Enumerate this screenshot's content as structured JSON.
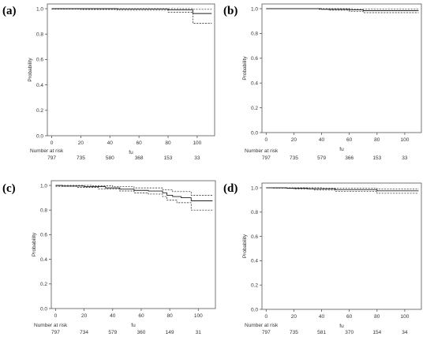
{
  "chart_data": [
    {
      "type": "line",
      "panel_label": "(a)",
      "ylabel": "Probability",
      "xlabel": "fu",
      "xlim": [
        -3,
        112
      ],
      "ylim": [
        0.0,
        1.0
      ],
      "xticks": [
        "0",
        "20",
        "40",
        "60",
        "80",
        "100"
      ],
      "yticks": [
        "0.0",
        "0.2",
        "0.4",
        "0.6",
        "0.8",
        "1.0"
      ],
      "risk_table": {
        "label": "Number at risk",
        "x": [
          0,
          20,
          40,
          60,
          80,
          100
        ],
        "counts": [
          "797",
          "735",
          "580",
          "368",
          "153",
          "33"
        ]
      },
      "series": [
        {
          "style": "solid",
          "points": [
            [
              0,
              1.0
            ],
            [
              45,
              1.0
            ],
            [
              45,
              0.997
            ],
            [
              80,
              0.997
            ],
            [
              80,
              0.99
            ],
            [
              97,
              0.99
            ],
            [
              97,
              0.962
            ],
            [
              110,
              0.962
            ]
          ]
        },
        {
          "style": "dashed",
          "points": [
            [
              0,
              1.0
            ],
            [
              97,
              1.0
            ],
            [
              97,
              0.995
            ],
            [
              110,
              0.995
            ]
          ]
        },
        {
          "style": "dashed",
          "points": [
            [
              0,
              0.997
            ],
            [
              20,
              0.997
            ],
            [
              20,
              0.994
            ],
            [
              45,
              0.994
            ],
            [
              45,
              0.988
            ],
            [
              80,
              0.988
            ],
            [
              80,
              0.972
            ],
            [
              97,
              0.972
            ],
            [
              97,
              0.885
            ],
            [
              110,
              0.885
            ]
          ]
        }
      ]
    },
    {
      "type": "line",
      "panel_label": "(b)",
      "ylabel": "Probability",
      "xlabel": "fu",
      "xlim": [
        -3,
        112
      ],
      "ylim": [
        0.0,
        1.0
      ],
      "xticks": [
        "0",
        "20",
        "40",
        "60",
        "80",
        "100"
      ],
      "yticks": [
        "0.0",
        "0.2",
        "0.4",
        "0.6",
        "0.8",
        "1.0"
      ],
      "risk_table": {
        "label": "Number at risk",
        "x": [
          0,
          20,
          40,
          60,
          80,
          100
        ],
        "counts": [
          "797",
          "735",
          "579",
          "366",
          "153",
          "33"
        ]
      },
      "series": [
        {
          "style": "solid",
          "points": [
            [
              0,
              1.0
            ],
            [
              40,
              1.0
            ],
            [
              40,
              0.995
            ],
            [
              60,
              0.995
            ],
            [
              60,
              0.99
            ],
            [
              70,
              0.99
            ],
            [
              70,
              0.984
            ],
            [
              110,
              0.984
            ]
          ]
        },
        {
          "style": "dashed",
          "points": [
            [
              0,
              1.0
            ],
            [
              62,
              1.0
            ],
            [
              62,
              0.998
            ],
            [
              110,
              0.998
            ]
          ]
        },
        {
          "style": "dashed",
          "points": [
            [
              38,
              0.995
            ],
            [
              45,
              0.995
            ],
            [
              45,
              0.988
            ],
            [
              60,
              0.988
            ],
            [
              60,
              0.978
            ],
            [
              70,
              0.978
            ],
            [
              70,
              0.968
            ],
            [
              110,
              0.968
            ]
          ]
        }
      ]
    },
    {
      "type": "line",
      "panel_label": "(c)",
      "ylabel": "Probability",
      "xlabel": "fu",
      "xlim": [
        -3,
        112
      ],
      "ylim": [
        0.0,
        1.0
      ],
      "xticks": [
        "0",
        "20",
        "40",
        "60",
        "80",
        "100"
      ],
      "yticks": [
        "0.0",
        "0.2",
        "0.4",
        "0.6",
        "0.8",
        "1.0"
      ],
      "risk_table": {
        "label": "Number at risk",
        "x": [
          0,
          20,
          40,
          60,
          80,
          100
        ],
        "counts": [
          "797",
          "734",
          "579",
          "360",
          "149",
          "31"
        ]
      },
      "series": [
        {
          "style": "solid",
          "points": [
            [
              0,
              1.0
            ],
            [
              5,
              1.0
            ],
            [
              5,
              0.995
            ],
            [
              20,
              0.995
            ],
            [
              20,
              0.99
            ],
            [
              35,
              0.99
            ],
            [
              35,
              0.98
            ],
            [
              45,
              0.98
            ],
            [
              45,
              0.97
            ],
            [
              55,
              0.97
            ],
            [
              55,
              0.96
            ],
            [
              65,
              0.96
            ],
            [
              65,
              0.955
            ],
            [
              75,
              0.955
            ],
            [
              75,
              0.94
            ],
            [
              78,
              0.94
            ],
            [
              78,
              0.92
            ],
            [
              82,
              0.92
            ],
            [
              82,
              0.91
            ],
            [
              88,
              0.91
            ],
            [
              88,
              0.9
            ],
            [
              95,
              0.9
            ],
            [
              95,
              0.875
            ],
            [
              110,
              0.875
            ]
          ]
        },
        {
          "style": "dashed",
          "points": [
            [
              0,
              1.0
            ],
            [
              25,
              1.0
            ],
            [
              25,
              0.997
            ],
            [
              40,
              0.997
            ],
            [
              40,
              0.99
            ],
            [
              55,
              0.99
            ],
            [
              55,
              0.98
            ],
            [
              75,
              0.98
            ],
            [
              75,
              0.965
            ],
            [
              82,
              0.965
            ],
            [
              82,
              0.95
            ],
            [
              95,
              0.95
            ],
            [
              95,
              0.92
            ],
            [
              110,
              0.92
            ]
          ]
        },
        {
          "style": "dashed",
          "points": [
            [
              0,
              0.993
            ],
            [
              15,
              0.993
            ],
            [
              15,
              0.985
            ],
            [
              30,
              0.985
            ],
            [
              30,
              0.97
            ],
            [
              45,
              0.97
            ],
            [
              45,
              0.955
            ],
            [
              55,
              0.955
            ],
            [
              55,
              0.94
            ],
            [
              65,
              0.94
            ],
            [
              65,
              0.93
            ],
            [
              75,
              0.93
            ],
            [
              75,
              0.91
            ],
            [
              78,
              0.91
            ],
            [
              78,
              0.88
            ],
            [
              85,
              0.88
            ],
            [
              85,
              0.86
            ],
            [
              95,
              0.86
            ],
            [
              95,
              0.8
            ],
            [
              110,
              0.8
            ]
          ]
        }
      ]
    },
    {
      "type": "line",
      "panel_label": "(d)",
      "ylabel": "Probability",
      "xlabel": "fu",
      "xlim": [
        -3,
        112
      ],
      "ylim": [
        0.0,
        1.0
      ],
      "xticks": [
        "0",
        "20",
        "40",
        "60",
        "80",
        "100"
      ],
      "yticks": [
        "0.0",
        "0.2",
        "0.4",
        "0.6",
        "0.8",
        "1.0"
      ],
      "risk_table": {
        "label": "Number at risk",
        "x": [
          0,
          20,
          40,
          60,
          80,
          100
        ],
        "counts": [
          "797",
          "735",
          "581",
          "370",
          "154",
          "34"
        ]
      },
      "series": [
        {
          "style": "solid",
          "points": [
            [
              0,
              1.0
            ],
            [
              15,
              1.0
            ],
            [
              15,
              0.996
            ],
            [
              30,
              0.996
            ],
            [
              30,
              0.992
            ],
            [
              50,
              0.992
            ],
            [
              50,
              0.985
            ],
            [
              80,
              0.985
            ],
            [
              80,
              0.975
            ],
            [
              110,
              0.975
            ]
          ]
        },
        {
          "style": "dashed",
          "points": [
            [
              0,
              1.0
            ],
            [
              40,
              1.0
            ],
            [
              40,
              0.998
            ],
            [
              80,
              0.998
            ],
            [
              80,
              0.99
            ],
            [
              110,
              0.99
            ]
          ]
        },
        {
          "style": "dashed",
          "points": [
            [
              5,
              0.997
            ],
            [
              20,
              0.997
            ],
            [
              20,
              0.99
            ],
            [
              35,
              0.99
            ],
            [
              35,
              0.982
            ],
            [
              50,
              0.982
            ],
            [
              50,
              0.972
            ],
            [
              80,
              0.972
            ],
            [
              80,
              0.955
            ],
            [
              110,
              0.955
            ]
          ]
        }
      ]
    }
  ]
}
